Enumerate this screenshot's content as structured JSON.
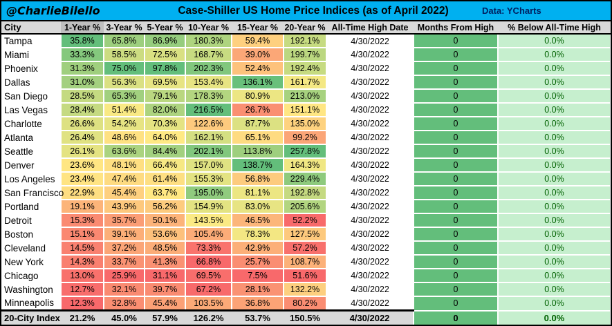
{
  "header": {
    "handle": "@CharlieBilello",
    "title": "Case-Shiller US Home Price Indices (as of April 2022)",
    "source": "Data: YCharts"
  },
  "colors": {
    "titlebar_cyan": "#00B0F0",
    "source_navy": "#002060",
    "header_gray": "#D9D9D9",
    "header_selected_gray": "#BFBFBF",
    "heat_min_red": "#F8696B",
    "heat_mid_yellow": "#FFEB84",
    "heat_max_green": "#63BE7B",
    "months_green": "#63BE7B",
    "below_bg_green": "#C6EFCE",
    "below_text_green": "#006100",
    "summary_gray": "#D9D9D9"
  },
  "chart_data": {
    "type": "table",
    "title": "Case-Shiller US Home Price Indices (as of April 2022)",
    "columns": [
      "City",
      "1-Year %",
      "3-Year %",
      "5-Year %",
      "10-Year %",
      "15-Year %",
      "20-Year %",
      "All-Time High Date",
      "Months From High",
      "% Below All-Time High"
    ],
    "heatmap": {
      "scope": "per-column",
      "applies_to_columns": [
        "1-Year %",
        "3-Year %",
        "5-Year %",
        "10-Year %",
        "15-Year %",
        "20-Year %"
      ],
      "min_color": "#F8696B",
      "mid_color": "#FFEB84",
      "max_color": "#63BE7B",
      "midpoint": "midrange"
    },
    "rows": [
      {
        "city": "Tampa",
        "returns": [
          35.8,
          65.8,
          86.9,
          180.3,
          59.4,
          192.1
        ],
        "all_time_high_date": "4/30/2022",
        "months_from_high": 0,
        "pct_below_high": 0.0
      },
      {
        "city": "Miami",
        "returns": [
          33.3,
          58.5,
          72.5,
          168.7,
          39.0,
          199.7
        ],
        "all_time_high_date": "4/30/2022",
        "months_from_high": 0,
        "pct_below_high": 0.0
      },
      {
        "city": "Phoenix",
        "returns": [
          31.3,
          75.0,
          97.8,
          202.3,
          52.4,
          192.4
        ],
        "all_time_high_date": "4/30/2022",
        "months_from_high": 0,
        "pct_below_high": 0.0
      },
      {
        "city": "Dallas",
        "returns": [
          31.0,
          56.3,
          69.5,
          153.4,
          136.1,
          161.7
        ],
        "all_time_high_date": "4/30/2022",
        "months_from_high": 0,
        "pct_below_high": 0.0
      },
      {
        "city": "San Diego",
        "returns": [
          28.5,
          65.3,
          79.1,
          178.3,
          80.9,
          213.0
        ],
        "all_time_high_date": "4/30/2022",
        "months_from_high": 0,
        "pct_below_high": 0.0
      },
      {
        "city": "Las Vegas",
        "returns": [
          28.4,
          51.4,
          82.0,
          216.5,
          26.7,
          151.1
        ],
        "all_time_high_date": "4/30/2022",
        "months_from_high": 0,
        "pct_below_high": 0.0
      },
      {
        "city": "Charlotte",
        "returns": [
          26.6,
          54.2,
          70.3,
          122.6,
          87.7,
          135.0
        ],
        "all_time_high_date": "4/30/2022",
        "months_from_high": 0,
        "pct_below_high": 0.0
      },
      {
        "city": "Atlanta",
        "returns": [
          26.4,
          48.6,
          64.0,
          162.1,
          65.1,
          99.2
        ],
        "all_time_high_date": "4/30/2022",
        "months_from_high": 0,
        "pct_below_high": 0.0
      },
      {
        "city": "Seattle",
        "returns": [
          26.1,
          63.6,
          84.4,
          202.1,
          113.8,
          257.8
        ],
        "all_time_high_date": "4/30/2022",
        "months_from_high": 0,
        "pct_below_high": 0.0
      },
      {
        "city": "Denver",
        "returns": [
          23.6,
          48.1,
          66.4,
          157.0,
          138.7,
          164.3
        ],
        "all_time_high_date": "4/30/2022",
        "months_from_high": 0,
        "pct_below_high": 0.0
      },
      {
        "city": "Los Angeles",
        "returns": [
          23.4,
          47.4,
          61.4,
          155.3,
          56.8,
          229.4
        ],
        "all_time_high_date": "4/30/2022",
        "months_from_high": 0,
        "pct_below_high": 0.0
      },
      {
        "city": "San Francisco",
        "returns": [
          22.9,
          45.4,
          63.7,
          195.0,
          81.1,
          192.8
        ],
        "all_time_high_date": "4/30/2022",
        "months_from_high": 0,
        "pct_below_high": 0.0
      },
      {
        "city": "Portland",
        "returns": [
          19.1,
          43.9,
          56.2,
          154.9,
          83.0,
          205.6
        ],
        "all_time_high_date": "4/30/2022",
        "months_from_high": 0,
        "pct_below_high": 0.0
      },
      {
        "city": "Detroit",
        "returns": [
          15.3,
          35.7,
          50.1,
          143.5,
          46.5,
          52.2
        ],
        "all_time_high_date": "4/30/2022",
        "months_from_high": 0,
        "pct_below_high": 0.0
      },
      {
        "city": "Boston",
        "returns": [
          15.1,
          39.1,
          53.6,
          105.4,
          78.3,
          127.5
        ],
        "all_time_high_date": "4/30/2022",
        "months_from_high": 0,
        "pct_below_high": 0.0
      },
      {
        "city": "Cleveland",
        "returns": [
          14.5,
          37.2,
          48.5,
          73.3,
          42.9,
          57.2
        ],
        "all_time_high_date": "4/30/2022",
        "months_from_high": 0,
        "pct_below_high": 0.0
      },
      {
        "city": "New York",
        "returns": [
          14.3,
          33.7,
          41.3,
          66.8,
          25.7,
          108.7
        ],
        "all_time_high_date": "4/30/2022",
        "months_from_high": 0,
        "pct_below_high": 0.0
      },
      {
        "city": "Chicago",
        "returns": [
          13.0,
          25.9,
          31.1,
          69.5,
          7.5,
          51.6
        ],
        "all_time_high_date": "4/30/2022",
        "months_from_high": 0,
        "pct_below_high": 0.0
      },
      {
        "city": "Washington",
        "returns": [
          12.7,
          32.1,
          39.7,
          67.2,
          28.1,
          132.2
        ],
        "all_time_high_date": "4/30/2022",
        "months_from_high": 0,
        "pct_below_high": 0.0
      },
      {
        "city": "Minneapolis",
        "returns": [
          12.3,
          32.8,
          45.4,
          103.5,
          36.8,
          80.2
        ],
        "all_time_high_date": "4/30/2022",
        "months_from_high": 0,
        "pct_below_high": 0.0
      }
    ],
    "summary_row": {
      "city": "20-City Index",
      "returns": [
        21.2,
        45.0,
        57.9,
        126.2,
        53.7,
        150.5
      ],
      "all_time_high_date": "4/30/2022",
      "months_from_high": 0,
      "pct_below_high": 0.0
    }
  }
}
